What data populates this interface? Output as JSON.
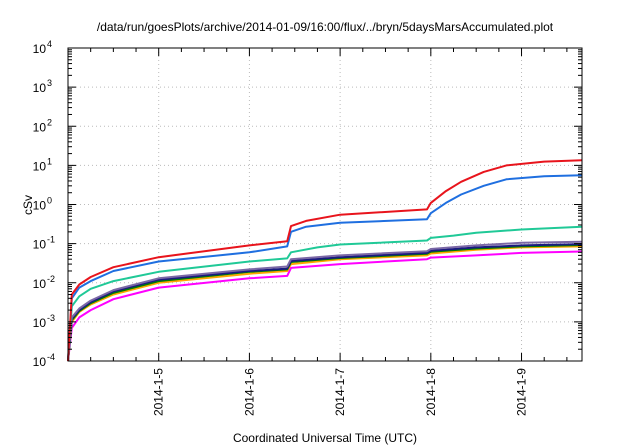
{
  "chart_data": {
    "type": "line",
    "title": "/data/run/goesPlots/archive/2014-01-09/16:00/flux/../bryn/5daysMarsAccumulated.plot",
    "xlabel": "Coordinated Universal Time (UTC)",
    "ylabel": "cSv",
    "y_scale": "log",
    "ylim": [
      0.0001,
      10000
    ],
    "xlim": [
      "2014-01-04 00:00",
      "2014-01-09 16:00"
    ],
    "x_ticks": [
      "2014-1-5",
      "2014-1-6",
      "2014-1-7",
      "2014-1-8",
      "2014-1-9"
    ],
    "y_ticks": [
      {
        "value": 0.0001,
        "base": "10",
        "exp": "-4"
      },
      {
        "value": 0.001,
        "base": "10",
        "exp": "-3"
      },
      {
        "value": 0.01,
        "base": "10",
        "exp": "-2"
      },
      {
        "value": 0.1,
        "base": "10",
        "exp": "-1"
      },
      {
        "value": 1,
        "base": "10",
        "exp": "0"
      },
      {
        "value": 10,
        "base": "10",
        "exp": "1"
      },
      {
        "value": 100,
        "base": "10",
        "exp": "2"
      },
      {
        "value": 1000,
        "base": "10",
        "exp": "3"
      },
      {
        "value": 10000,
        "base": "10",
        "exp": "4"
      }
    ],
    "grid": true,
    "series": [
      {
        "color": "#ff00ff",
        "points": [
          [
            "2014-01-04 00:00",
            0.0001
          ],
          [
            "2014-01-04 01:00",
            0.0007
          ],
          [
            "2014-01-04 03:00",
            0.0013
          ],
          [
            "2014-01-04 06:00",
            0.002
          ],
          [
            "2014-01-04 12:00",
            0.0038
          ],
          [
            "2014-01-05 00:00",
            0.0075
          ],
          [
            "2014-01-06 00:00",
            0.013
          ],
          [
            "2014-01-06 10:00",
            0.015
          ],
          [
            "2014-01-06 11:00",
            0.024
          ],
          [
            "2014-01-07 00:00",
            0.03
          ],
          [
            "2014-01-07 23:00",
            0.04
          ],
          [
            "2014-01-08 00:00",
            0.044
          ],
          [
            "2014-01-08 12:00",
            0.05
          ],
          [
            "2014-01-09 00:00",
            0.058
          ],
          [
            "2014-01-09 16:00",
            0.063
          ]
        ]
      },
      {
        "color": "#ffa500",
        "points": [
          [
            "2014-01-04 00:00",
            0.0001
          ],
          [
            "2014-01-04 01:00",
            0.001
          ],
          [
            "2014-01-04 03:00",
            0.0018
          ],
          [
            "2014-01-04 06:00",
            0.0028
          ],
          [
            "2014-01-04 12:00",
            0.005
          ],
          [
            "2014-01-05 00:00",
            0.01
          ],
          [
            "2014-01-06 00:00",
            0.017
          ],
          [
            "2014-01-06 10:00",
            0.02
          ],
          [
            "2014-01-06 11:00",
            0.03
          ],
          [
            "2014-01-07 00:00",
            0.04
          ],
          [
            "2014-01-07 23:00",
            0.05
          ],
          [
            "2014-01-08 00:00",
            0.056
          ],
          [
            "2014-01-08 12:00",
            0.07
          ],
          [
            "2014-01-09 00:00",
            0.08
          ],
          [
            "2014-01-09 16:00",
            0.085
          ]
        ]
      },
      {
        "color": "#008000",
        "points": [
          [
            "2014-01-04 00:00",
            0.0001
          ],
          [
            "2014-01-04 01:00",
            0.0011
          ],
          [
            "2014-01-04 03:00",
            0.0019
          ],
          [
            "2014-01-04 06:00",
            0.003
          ],
          [
            "2014-01-04 12:00",
            0.0055
          ],
          [
            "2014-01-05 00:00",
            0.011
          ],
          [
            "2014-01-06 00:00",
            0.019
          ],
          [
            "2014-01-06 10:00",
            0.022
          ],
          [
            "2014-01-06 11:00",
            0.034
          ],
          [
            "2014-01-07 00:00",
            0.043
          ],
          [
            "2014-01-07 23:00",
            0.055
          ],
          [
            "2014-01-08 00:00",
            0.062
          ],
          [
            "2014-01-08 12:00",
            0.075
          ],
          [
            "2014-01-09 00:00",
            0.085
          ],
          [
            "2014-01-09 16:00",
            0.092
          ]
        ]
      },
      {
        "color": "#1a1a80",
        "points": [
          [
            "2014-01-04 00:00",
            0.0001
          ],
          [
            "2014-01-04 01:00",
            0.0012
          ],
          [
            "2014-01-04 03:00",
            0.002
          ],
          [
            "2014-01-04 06:00",
            0.0032
          ],
          [
            "2014-01-04 12:00",
            0.006
          ],
          [
            "2014-01-05 00:00",
            0.012
          ],
          [
            "2014-01-06 00:00",
            0.02
          ],
          [
            "2014-01-06 10:00",
            0.023
          ],
          [
            "2014-01-06 11:00",
            0.036
          ],
          [
            "2014-01-07 00:00",
            0.045
          ],
          [
            "2014-01-07 23:00",
            0.058
          ],
          [
            "2014-01-08 00:00",
            0.066
          ],
          [
            "2014-01-08 12:00",
            0.08
          ],
          [
            "2014-01-09 00:00",
            0.09
          ],
          [
            "2014-01-09 16:00",
            0.097
          ]
        ]
      },
      {
        "color": "#7b68a6",
        "points": [
          [
            "2014-01-04 00:00",
            0.0001
          ],
          [
            "2014-01-04 01:00",
            0.0013
          ],
          [
            "2014-01-04 03:00",
            0.0022
          ],
          [
            "2014-01-04 06:00",
            0.0035
          ],
          [
            "2014-01-04 12:00",
            0.0065
          ],
          [
            "2014-01-05 00:00",
            0.013
          ],
          [
            "2014-01-06 00:00",
            0.022
          ],
          [
            "2014-01-06 10:00",
            0.026
          ],
          [
            "2014-01-06 11:00",
            0.04
          ],
          [
            "2014-01-07 00:00",
            0.05
          ],
          [
            "2014-01-07 23:00",
            0.064
          ],
          [
            "2014-01-08 00:00",
            0.073
          ],
          [
            "2014-01-08 12:00",
            0.09
          ],
          [
            "2014-01-09 00:00",
            0.105
          ],
          [
            "2014-01-09 16:00",
            0.112
          ]
        ]
      },
      {
        "color": "#20c997",
        "points": [
          [
            "2014-01-04 00:00",
            0.0001
          ],
          [
            "2014-01-04 01:00",
            0.0025
          ],
          [
            "2014-01-04 03:00",
            0.0045
          ],
          [
            "2014-01-04 06:00",
            0.007
          ],
          [
            "2014-01-04 12:00",
            0.011
          ],
          [
            "2014-01-05 00:00",
            0.019
          ],
          [
            "2014-01-06 00:00",
            0.035
          ],
          [
            "2014-01-06 10:00",
            0.042
          ],
          [
            "2014-01-06 11:00",
            0.06
          ],
          [
            "2014-01-06 18:00",
            0.08
          ],
          [
            "2014-01-07 00:00",
            0.095
          ],
          [
            "2014-01-07 23:00",
            0.12
          ],
          [
            "2014-01-08 00:00",
            0.14
          ],
          [
            "2014-01-08 06:00",
            0.16
          ],
          [
            "2014-01-08 12:00",
            0.19
          ],
          [
            "2014-01-09 00:00",
            0.23
          ],
          [
            "2014-01-09 16:00",
            0.27
          ]
        ]
      },
      {
        "color": "#1f6fe0",
        "points": [
          [
            "2014-01-04 00:00",
            0.0001
          ],
          [
            "2014-01-04 01:00",
            0.004
          ],
          [
            "2014-01-04 03:00",
            0.0075
          ],
          [
            "2014-01-04 06:00",
            0.011
          ],
          [
            "2014-01-04 12:00",
            0.02
          ],
          [
            "2014-01-05 00:00",
            0.035
          ],
          [
            "2014-01-06 00:00",
            0.06
          ],
          [
            "2014-01-06 10:00",
            0.085
          ],
          [
            "2014-01-06 11:00",
            0.2
          ],
          [
            "2014-01-06 15:00",
            0.27
          ],
          [
            "2014-01-07 00:00",
            0.34
          ],
          [
            "2014-01-07 23:00",
            0.42
          ],
          [
            "2014-01-08 00:00",
            0.6
          ],
          [
            "2014-01-08 04:00",
            1.1
          ],
          [
            "2014-01-08 08:00",
            1.8
          ],
          [
            "2014-01-08 14:00",
            3.0
          ],
          [
            "2014-01-08 20:00",
            4.4
          ],
          [
            "2014-01-09 06:00",
            5.3
          ],
          [
            "2014-01-09 16:00",
            5.6
          ]
        ]
      },
      {
        "color": "#e8141c",
        "points": [
          [
            "2014-01-04 00:00",
            0.0001
          ],
          [
            "2014-01-04 01:00",
            0.005
          ],
          [
            "2014-01-04 03:00",
            0.009
          ],
          [
            "2014-01-04 06:00",
            0.014
          ],
          [
            "2014-01-04 12:00",
            0.025
          ],
          [
            "2014-01-05 00:00",
            0.045
          ],
          [
            "2014-01-06 00:00",
            0.09
          ],
          [
            "2014-01-06 10:00",
            0.115
          ],
          [
            "2014-01-06 11:00",
            0.28
          ],
          [
            "2014-01-06 15:00",
            0.38
          ],
          [
            "2014-01-07 00:00",
            0.55
          ],
          [
            "2014-01-07 23:00",
            0.75
          ],
          [
            "2014-01-08 00:00",
            1.1
          ],
          [
            "2014-01-08 04:00",
            2.2
          ],
          [
            "2014-01-08 08:00",
            3.8
          ],
          [
            "2014-01-08 14:00",
            6.8
          ],
          [
            "2014-01-08 20:00",
            10.0
          ],
          [
            "2014-01-09 06:00",
            12.5
          ],
          [
            "2014-01-09 16:00",
            13.5
          ]
        ]
      }
    ]
  }
}
